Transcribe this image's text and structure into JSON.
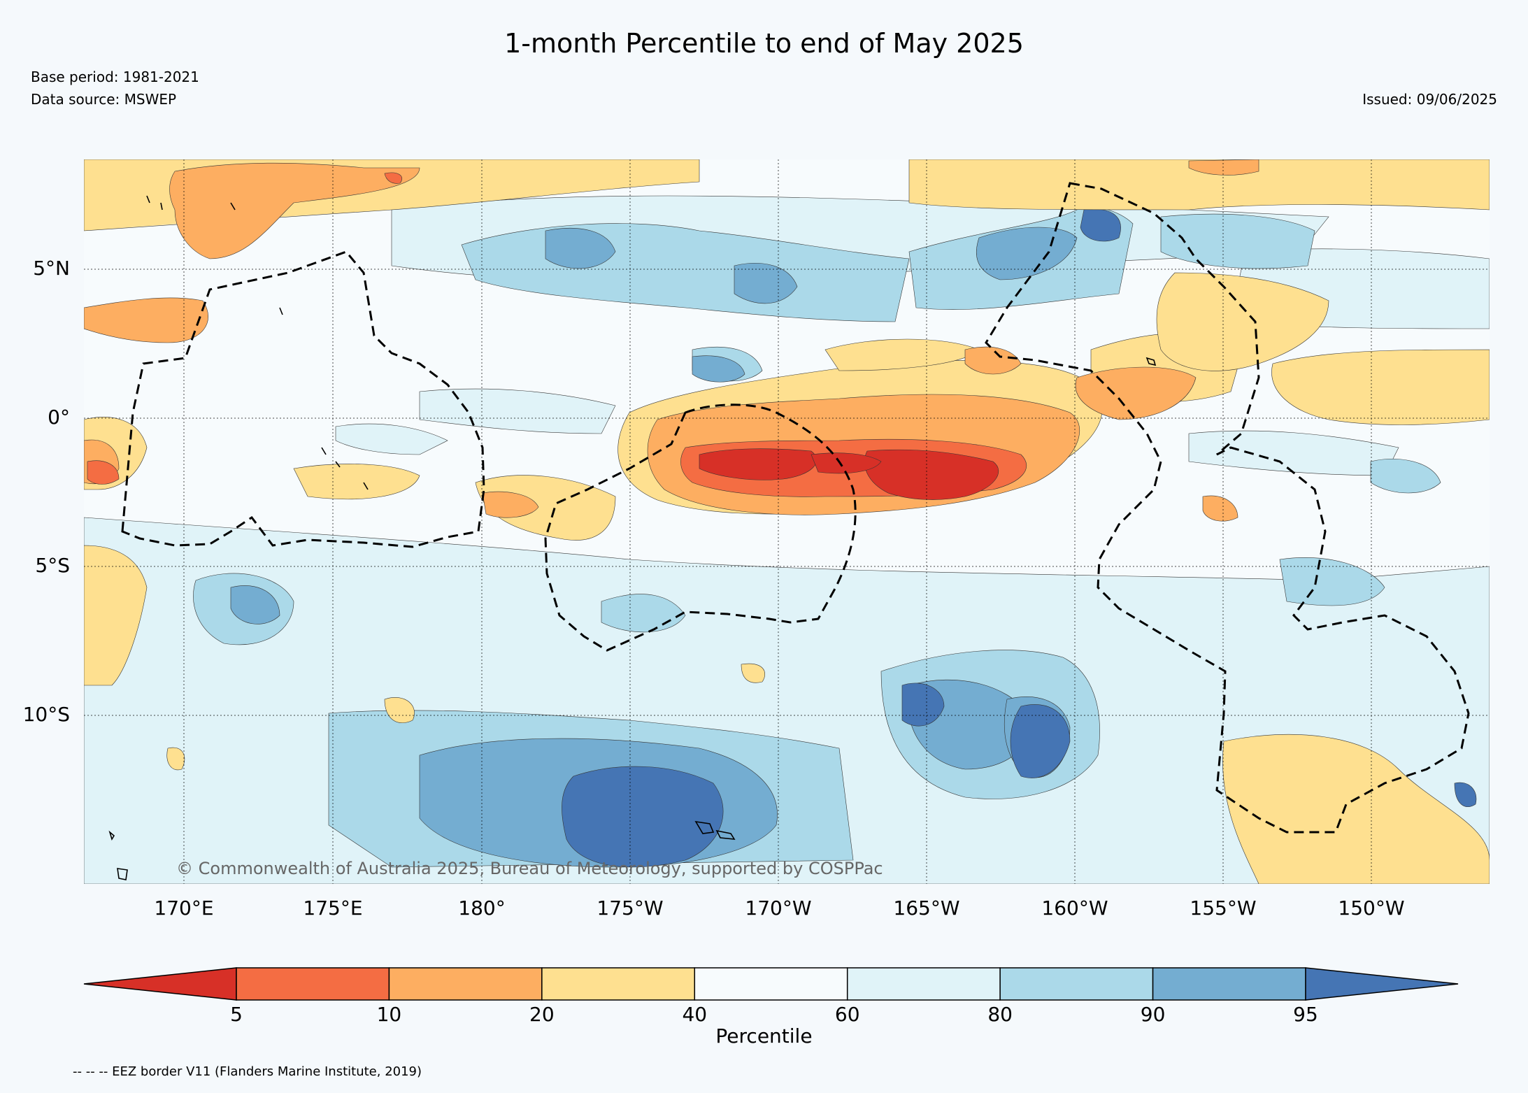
{
  "map": {
    "title": "1-month Percentile to end of May 2025",
    "base_period": "Base period: 1981-2021",
    "data_source": "Data source: MSWEP",
    "issued": "Issued: 09/06/2025",
    "copyright": "© Commonwealth of Australia 2025, Bureau of Meteorology, supported by COSPPac",
    "footnote": "-- -- -- EEZ border V11 (Flanders Marine Institute, 2019)",
    "lat_labels": [
      "5°N",
      "0°",
      "5°S",
      "10°S"
    ],
    "lon_labels": [
      "170°E",
      "175°E",
      "180°",
      "175°W",
      "170°W",
      "165°W",
      "160°W",
      "155°W",
      "150°W"
    ]
  },
  "colorbar": {
    "label": "Percentile",
    "ticks": [
      "5",
      "10",
      "20",
      "40",
      "60",
      "80",
      "90",
      "95"
    ],
    "colors": [
      "#d73027",
      "#f46d43",
      "#fdae61",
      "#fee090",
      "#f7fbfd",
      "#e0f3f8",
      "#abd9e9",
      "#74add1",
      "#4575b4"
    ]
  }
}
